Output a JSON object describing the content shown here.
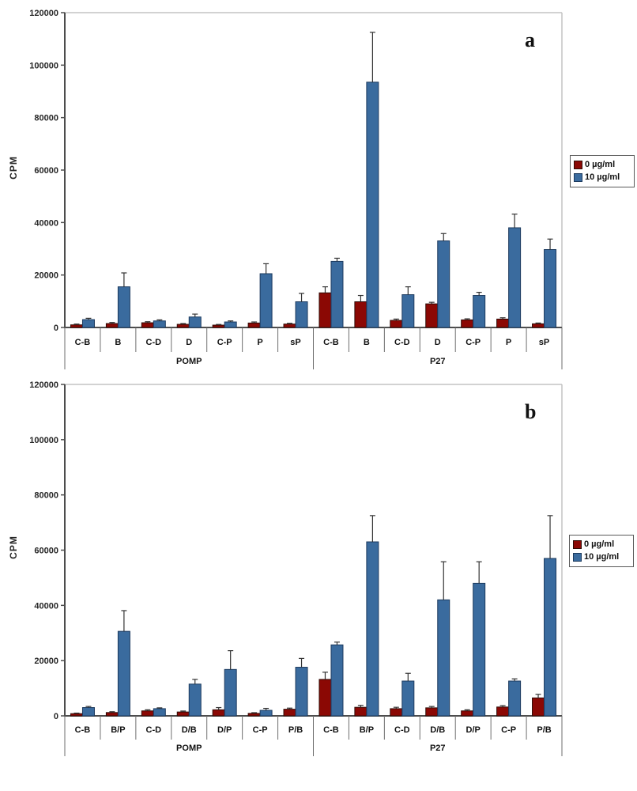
{
  "figure_title": "",
  "legend": {
    "series_0": "0 µg/ml",
    "series_1": "10 µg/ml"
  },
  "chart_data": [
    {
      "panel_label": "a",
      "type": "bar",
      "title": "",
      "xlabel": "",
      "ylabel": "CPM",
      "ylim": [
        0,
        120000
      ],
      "ytick_step": 20000,
      "ytick_labels": [
        "0",
        "20000",
        "40000",
        "60000",
        "80000",
        "100000",
        "120000"
      ],
      "grid": false,
      "legend_position": "right-outside",
      "groups": [
        {
          "name": "POMP",
          "categories": [
            "C-B",
            "B",
            "C-D",
            "D",
            "C-P",
            "P",
            "sP"
          ]
        },
        {
          "name": "P27",
          "categories": [
            "C-B",
            "B",
            "C-D",
            "D",
            "C-P",
            "P",
            "sP"
          ]
        }
      ],
      "series": [
        {
          "name": "0 µg/ml",
          "fill": "#8B0804",
          "stroke": "#2E0B06",
          "values": [
            1000,
            1500,
            1800,
            1200,
            900,
            1700,
            1300,
            13200,
            9800,
            2700,
            9000,
            2900,
            3200,
            1400
          ],
          "errors": [
            300,
            400,
            400,
            300,
            250,
            400,
            300,
            2300,
            2400,
            500,
            600,
            400,
            500,
            300
          ]
        },
        {
          "name": "10 µg/ml",
          "fill": "#3A6B9E",
          "stroke": "#1C3A5E",
          "values": [
            3000,
            15500,
            2500,
            4000,
            2100,
            20500,
            9800,
            25200,
            93500,
            12500,
            33000,
            12200,
            38000,
            29700
          ],
          "errors": [
            500,
            5300,
            400,
            1100,
            400,
            3800,
            3200,
            1200,
            19000,
            3000,
            2800,
            1200,
            5200,
            4000
          ]
        }
      ]
    },
    {
      "panel_label": "b",
      "type": "bar",
      "title": "",
      "xlabel": "",
      "ylabel": "CPM",
      "ylim": [
        0,
        120000
      ],
      "ytick_step": 20000,
      "ytick_labels": [
        "0",
        "20000",
        "40000",
        "60000",
        "80000",
        "100000",
        "120000"
      ],
      "grid": false,
      "legend_position": "right-outside",
      "groups": [
        {
          "name": "POMP",
          "categories": [
            "C-B",
            "B/P",
            "C-D",
            "D/B",
            "D/P",
            "C-P",
            "P/B"
          ]
        },
        {
          "name": "P27",
          "categories": [
            "C-B",
            "B/P",
            "C-D",
            "D/B",
            "D/P",
            "C-P",
            "P/B"
          ]
        }
      ],
      "series": [
        {
          "name": "0 µg/ml",
          "fill": "#8B0804",
          "stroke": "#2E0B06",
          "values": [
            800,
            1200,
            1800,
            1400,
            2200,
            900,
            2400,
            13200,
            3100,
            2600,
            2900,
            1800,
            3200,
            6500
          ],
          "errors": [
            200,
            300,
            400,
            350,
            800,
            250,
            400,
            2600,
            700,
            500,
            500,
            400,
            500,
            1300
          ]
        },
        {
          "name": "10 µg/ml",
          "fill": "#3A6B9E",
          "stroke": "#1C3A5E",
          "values": [
            3000,
            30600,
            2600,
            11500,
            16800,
            2000,
            17600,
            25700,
            63000,
            12600,
            42000,
            48000,
            12600,
            57000
          ],
          "errors": [
            400,
            7500,
            300,
            1700,
            6800,
            700,
            3200,
            1000,
            9500,
            2800,
            13800,
            7800,
            800,
            15500
          ]
        }
      ]
    }
  ]
}
